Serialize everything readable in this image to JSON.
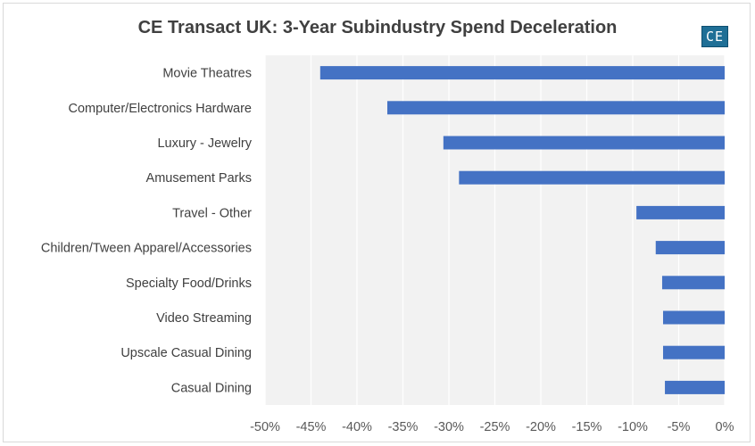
{
  "chart_data": {
    "type": "bar",
    "orientation": "horizontal",
    "title": "CE Transact UK: 3-Year Subindustry Spend Deceleration",
    "logo_text": "CE",
    "categories": [
      "Movie Theatres",
      "Computer/Electronics Hardware",
      "Luxury - Jewelry",
      "Amusement Parks",
      "Travel - Other",
      "Children/Tween Apparel/Accessories",
      "Specialty Food/Drinks",
      "Video Streaming",
      "Upscale Casual Dining",
      "Casual Dining"
    ],
    "series": [
      {
        "values": [
          -44.0,
          -36.7,
          -30.6,
          -28.9,
          -9.6,
          -7.5,
          -6.8,
          -6.7,
          -6.7,
          -6.5
        ],
        "color": "#4472c4"
      }
    ],
    "xlim": [
      -50,
      0
    ],
    "xticks": [
      -50,
      -45,
      -40,
      -35,
      -30,
      -25,
      -20,
      -15,
      -10,
      -5,
      0
    ],
    "xtick_labels": [
      "-50%",
      "-45%",
      "-40%",
      "-35%",
      "-30%",
      "-25%",
      "-20%",
      "-15%",
      "-10%",
      "-5%",
      "0%"
    ],
    "xlabel": "",
    "ylabel": "",
    "grid": true,
    "legend": "none",
    "colors": {
      "bar": "#4472c4",
      "plot_background": "#f2f2f2",
      "grid": "#ffffff",
      "logo": "#1f6f96"
    }
  }
}
